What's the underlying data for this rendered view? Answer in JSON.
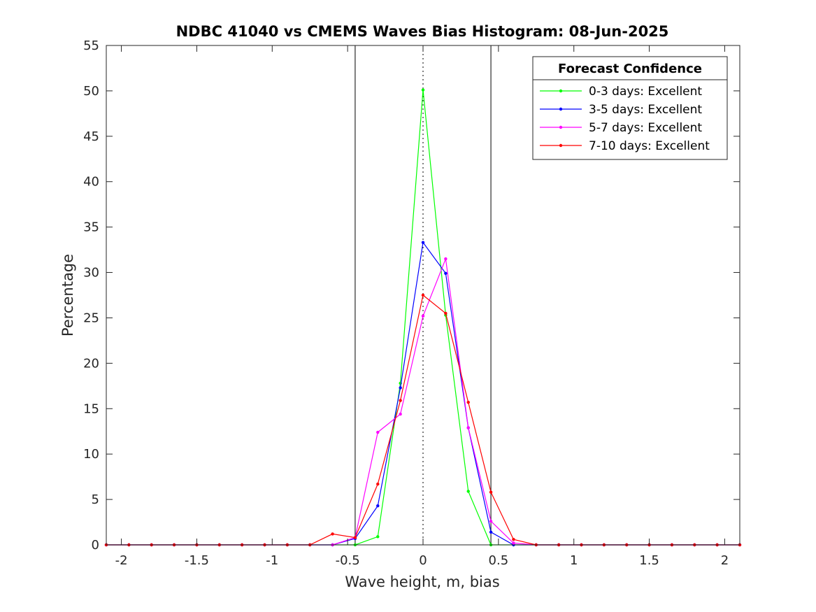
{
  "chart_data": {
    "type": "line",
    "title": "NDBC 41040 vs CMEMS Waves Bias Histogram: 08-Jun-2025",
    "xlabel": "Wave height, m, bias",
    "ylabel": "Percentage",
    "xlim": [
      -2.1,
      2.1
    ],
    "ylim": [
      0,
      55
    ],
    "xticks": [
      -2,
      -1.5,
      -1,
      -0.5,
      0,
      0.5,
      1,
      1.5,
      2
    ],
    "xtick_labels": [
      "-2",
      "-1.5",
      "-1",
      "-0.5",
      "0",
      "0.5",
      "1",
      "1.5",
      "2"
    ],
    "yticks": [
      0,
      5,
      10,
      15,
      20,
      25,
      30,
      35,
      40,
      45,
      50,
      55
    ],
    "ytick_labels": [
      "0",
      "5",
      "10",
      "15",
      "20",
      "25",
      "30",
      "35",
      "40",
      "45",
      "50",
      "55"
    ],
    "vertical_lines": [
      {
        "x": -0.45,
        "style": "solid"
      },
      {
        "x": 0.45,
        "style": "solid"
      },
      {
        "x": 0,
        "style": "dotted"
      }
    ],
    "legend": {
      "title": "Forecast Confidence",
      "position": "top-right"
    },
    "x": [
      -2.1,
      -1.95,
      -1.8,
      -1.65,
      -1.5,
      -1.35,
      -1.2,
      -1.05,
      -0.9,
      -0.75,
      -0.6,
      -0.45,
      -0.3,
      -0.15,
      0,
      0.15,
      0.3,
      0.45,
      0.6,
      0.75,
      0.9,
      1.05,
      1.2,
      1.35,
      1.5,
      1.65,
      1.8,
      1.95,
      2.1
    ],
    "series": [
      {
        "name": "0-3 days: Excellent",
        "color": "#00ff00",
        "values": [
          0,
          0,
          0,
          0,
          0,
          0,
          0,
          0,
          0,
          0,
          0,
          0,
          0.9,
          17.8,
          50.1,
          25.3,
          5.9,
          0,
          0,
          0,
          0,
          0,
          0,
          0,
          0,
          0,
          0,
          0,
          0
        ]
      },
      {
        "name": "3-5 days: Excellent",
        "color": "#0000ff",
        "values": [
          0,
          0,
          0,
          0,
          0,
          0,
          0,
          0,
          0,
          0,
          0,
          0.7,
          4.3,
          17.3,
          33.3,
          29.9,
          12.9,
          1.4,
          0,
          0,
          0,
          0,
          0,
          0,
          0,
          0,
          0,
          0,
          0
        ]
      },
      {
        "name": "5-7 days: Excellent",
        "color": "#ff00ff",
        "values": [
          0,
          0,
          0,
          0,
          0,
          0,
          0,
          0,
          0,
          0,
          0,
          0.8,
          12.4,
          14.4,
          25.2,
          31.5,
          12.9,
          2.6,
          0.2,
          0,
          0,
          0,
          0,
          0,
          0,
          0,
          0,
          0,
          0
        ]
      },
      {
        "name": "7-10 days: Excellent",
        "color": "#ff0000",
        "values": [
          0,
          0,
          0,
          0,
          0,
          0,
          0,
          0,
          0,
          0,
          1.2,
          0.8,
          6.7,
          15.9,
          27.5,
          25.5,
          15.7,
          5.8,
          0.6,
          0,
          0,
          0,
          0,
          0,
          0,
          0,
          0,
          0,
          0
        ]
      }
    ]
  }
}
